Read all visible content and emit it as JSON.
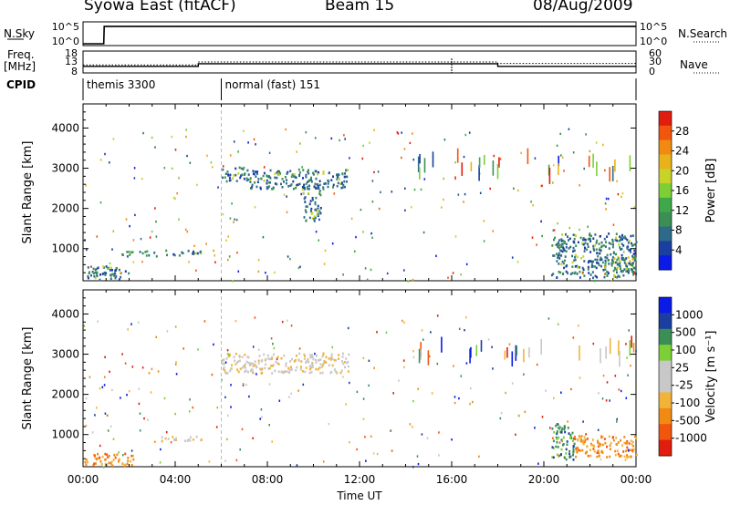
{
  "header": {
    "station": "Syowa East (fitACF)",
    "beam": "Beam 15",
    "date": "08/Aug/2009"
  },
  "strip_labels": {
    "nsky": "N.Sky",
    "nsearch": "N.Search",
    "freq_line1": "Freq.",
    "freq_line2": "[MHz]",
    "nave": "Nave",
    "cpid": "CPID"
  },
  "colors": {
    "scale": [
      "#0b1be6",
      "#1a3fa0",
      "#2e6b8a",
      "#3b8f55",
      "#3fa84a",
      "#7ccf35",
      "#c8d32a",
      "#e8b21a",
      "#f08a12",
      "#f2560e",
      "#e01d0e"
    ],
    "velocity_scale": [
      "#e01d0e",
      "#f2560e",
      "#f08a12",
      "#f2b33a",
      "#c8c8c8",
      "#c8c8c8",
      "#7ccf35",
      "#3b8f55",
      "#1a3fa0",
      "#0b1be6"
    ],
    "ground_scatter": "#c8c8c8"
  },
  "chart_data": [
    {
      "type": "line",
      "panel": "noise",
      "series": [
        {
          "name": "N.Sky",
          "x": [
            0.0,
            0.9,
            0.92,
            24.0
          ],
          "y": [
            1,
            1,
            200000.0,
            200000.0
          ]
        },
        {
          "name": "N.Search",
          "x": [
            0.0,
            0.9,
            0.92,
            24.0
          ],
          "y": [
            1,
            1,
            180000.0,
            180000.0
          ]
        }
      ],
      "left_ticks": [
        "10^5",
        "10^0"
      ],
      "right_ticks": [
        "10^5",
        "10^0"
      ]
    },
    {
      "type": "line",
      "panel": "freq_nave",
      "left_ticks": [
        "18",
        "13",
        "8"
      ],
      "right_ticks": [
        "60",
        "30",
        "0"
      ],
      "series": [
        {
          "name": "Freq",
          "x": [
            0.0,
            5.0,
            5.0,
            18.0,
            18.0,
            24.0
          ],
          "y": [
            11.0,
            11.0,
            12.2,
            12.2,
            11.0,
            11.0
          ]
        },
        {
          "name": "Nave",
          "x": [
            0.0,
            5.0,
            5.0,
            18.0,
            18.0,
            24.0
          ],
          "y": [
            22,
            22,
            30,
            30,
            26,
            26
          ]
        }
      ]
    },
    {
      "type": "table",
      "panel": "cpid",
      "segments": [
        {
          "start": 0.0,
          "label": "themis 3300"
        },
        {
          "start": 6.0,
          "label": "normal (fast) 151"
        }
      ]
    },
    {
      "type": "heatmap",
      "panel": "power",
      "ylabel": "Slant Range [km]",
      "ylim": [
        200,
        4600
      ],
      "xlim": [
        0,
        24
      ],
      "y_ticks": [
        "1000",
        "2000",
        "3000",
        "4000"
      ],
      "colorbar_label": "Power [dB]",
      "colorbar_ticks": [
        "4",
        "8",
        "12",
        "16",
        "20",
        "24",
        "28"
      ],
      "patches": [
        {
          "t0": 0.0,
          "t1": 2.0,
          "r0": 250,
          "r1": 600,
          "level": 2
        },
        {
          "t0": 1.6,
          "t1": 3.2,
          "r0": 830,
          "r1": 960,
          "level": 3
        },
        {
          "t0": 3.4,
          "t1": 5.1,
          "r0": 850,
          "r1": 980,
          "level": 2
        },
        {
          "t0": 6.0,
          "t1": 7.2,
          "r0": 2700,
          "r1": 3050,
          "level": 2
        },
        {
          "t0": 7.2,
          "t1": 11.5,
          "r0": 2500,
          "r1": 3000,
          "level": 2
        },
        {
          "t0": 9.5,
          "t1": 10.3,
          "r0": 1700,
          "r1": 2600,
          "level": 2
        },
        {
          "t0": 20.3,
          "t1": 24.0,
          "r0": 300,
          "r1": 1400,
          "level": 2
        },
        {
          "t0": 22.6,
          "t1": 24.0,
          "r0": 400,
          "r1": 800,
          "level": 3
        }
      ]
    },
    {
      "type": "heatmap",
      "panel": "velocity",
      "ylabel": "Slant Range [km]",
      "ylim": [
        200,
        4600
      ],
      "xlim": [
        0,
        24
      ],
      "y_ticks": [
        "1000",
        "2000",
        "3000",
        "4000"
      ],
      "colorbar_label": "Velocity [m s^-1]",
      "colorbar_ticks": [
        "1000",
        "500",
        "100",
        "25",
        "-25",
        "-100",
        "-500",
        "-1000"
      ],
      "patches": [
        {
          "t0": 0.0,
          "t1": 2.2,
          "r0": 250,
          "r1": 550,
          "level": 2
        },
        {
          "t0": 3.3,
          "t1": 5.2,
          "r0": 850,
          "r1": 980,
          "level": 4
        },
        {
          "t0": 6.0,
          "t1": 11.5,
          "r0": 2550,
          "r1": 3050,
          "level": 4
        },
        {
          "t0": 20.3,
          "t1": 21.3,
          "r0": 400,
          "r1": 1300,
          "level": 7
        },
        {
          "t0": 21.3,
          "t1": 24.0,
          "r0": 450,
          "r1": 1000,
          "level": 2
        }
      ]
    }
  ],
  "x_axis": {
    "ticks": [
      "00:00",
      "04:00",
      "08:00",
      "12:00",
      "16:00",
      "20:00",
      "00:00"
    ],
    "label": "Time UT"
  }
}
